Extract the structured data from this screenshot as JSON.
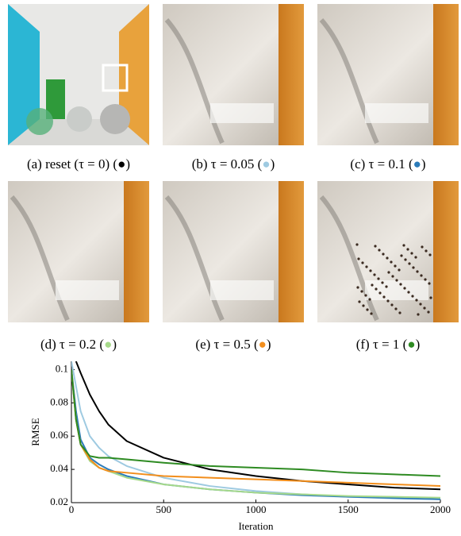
{
  "panels": [
    {
      "label": "(a) reset (τ = 0) (",
      "key": "●",
      "key_color": "#000000",
      "close": ")"
    },
    {
      "label": "(b) τ = 0.05 (",
      "key": "●",
      "key_color": "#9ecae1",
      "close": ")"
    },
    {
      "label": "(c) τ = 0.1 (",
      "key": "●",
      "key_color": "#2b7bb9",
      "close": ")"
    },
    {
      "label": "(d) τ = 0.2 (",
      "key": "●",
      "key_color": "#a6d98a",
      "close": ")"
    },
    {
      "label": "(e) τ = 0.5 (",
      "key": "●",
      "key_color": "#f28e1c",
      "close": ")"
    },
    {
      "label": "(f) τ = 1 (",
      "key": "●",
      "key_color": "#2e8b22",
      "close": ")"
    }
  ],
  "chart_data": {
    "type": "line",
    "x_label": "Iteration",
    "y_label": "RMSE",
    "x": [
      0,
      25,
      50,
      100,
      150,
      200,
      300,
      500,
      750,
      1000,
      1250,
      1500,
      1750,
      2000
    ],
    "series": [
      {
        "color": "#000000",
        "values": [
          null,
          0.105,
          0.098,
          0.085,
          0.075,
          0.067,
          0.057,
          0.047,
          0.04,
          0.036,
          0.033,
          0.031,
          0.029,
          0.028
        ]
      },
      {
        "color": "#9ecae1",
        "values": [
          0.105,
          0.09,
          0.075,
          0.06,
          0.053,
          0.048,
          0.042,
          0.035,
          0.03,
          0.027,
          0.025,
          0.0235,
          0.0225,
          0.022
        ]
      },
      {
        "color": "#2b7bb9",
        "values": [
          0.1,
          0.075,
          0.058,
          0.047,
          0.043,
          0.04,
          0.036,
          0.031,
          0.028,
          0.026,
          0.0245,
          0.0235,
          0.0228,
          0.022
        ]
      },
      {
        "color": "#a6d98a",
        "values": [
          0.1,
          0.07,
          0.055,
          0.045,
          0.041,
          0.039,
          0.035,
          0.031,
          0.028,
          0.026,
          0.025,
          0.024,
          0.0235,
          0.023
        ]
      },
      {
        "color": "#f28e1c",
        "values": [
          0.1,
          0.07,
          0.055,
          0.046,
          0.041,
          0.039,
          0.038,
          0.036,
          0.035,
          0.034,
          0.033,
          0.032,
          0.031,
          0.03
        ]
      },
      {
        "color": "#2e8b22",
        "values": [
          0.1,
          0.07,
          0.055,
          0.048,
          0.047,
          0.047,
          0.046,
          0.044,
          0.042,
          0.041,
          0.04,
          0.038,
          0.037,
          0.036
        ]
      }
    ],
    "xlim": [
      0,
      2000
    ],
    "xticks": [
      0,
      500,
      1000,
      1500,
      2000
    ],
    "ylim": [
      0.02,
      0.105
    ],
    "yticks": [
      0.02,
      0.04,
      0.06,
      0.08,
      0.1
    ]
  }
}
